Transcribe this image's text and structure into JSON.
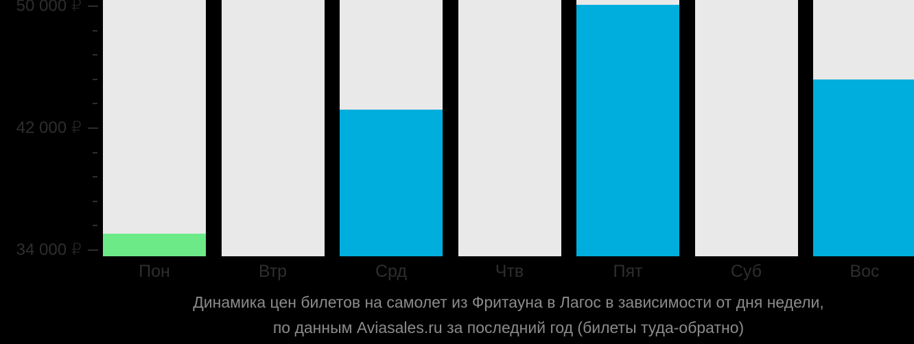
{
  "caption": {
    "line1": "Динамика цен билетов на самолет из Фритауна в Лагос в зависимости от дня недели,",
    "line2": "по данным Aviasales.ru за последний год (билеты туда-обратно)"
  },
  "chart_data": {
    "type": "bar",
    "title": "Динамика цен билетов на самолет из Фритауна в Лагос в зависимости от дня недели, по данным Aviasales.ru за последний год (билеты туда-обратно)",
    "categories": [
      "Пон",
      "Втр",
      "Срд",
      "Чтв",
      "Пят",
      "Суб",
      "Вос"
    ],
    "values": [
      35100,
      null,
      43200,
      null,
      50100,
      null,
      45200
    ],
    "unit": "₽",
    "ylim": [
      33600,
      50400
    ],
    "grid": false,
    "legend": false,
    "y_ticks": [
      {
        "value": 50000,
        "label": "50 000 ₽",
        "major": true
      },
      {
        "value": 48400,
        "label": "",
        "major": false
      },
      {
        "value": 46800,
        "label": "",
        "major": false
      },
      {
        "value": 45200,
        "label": "",
        "major": false
      },
      {
        "value": 43600,
        "label": "",
        "major": false
      },
      {
        "value": 42000,
        "label": "42 000 ₽",
        "major": true
      },
      {
        "value": 40400,
        "label": "",
        "major": false
      },
      {
        "value": 38800,
        "label": "",
        "major": false
      },
      {
        "value": 37200,
        "label": "",
        "major": false
      },
      {
        "value": 35600,
        "label": "",
        "major": false
      },
      {
        "value": 34000,
        "label": "34 000 ₽",
        "major": true
      }
    ],
    "bar_color_roles": [
      "lowest",
      null,
      "regular",
      null,
      "regular",
      null,
      "regular"
    ],
    "colors": {
      "lowest": "#6cea88",
      "regular": "#00aedd",
      "track": "#e9e9e9",
      "background": "#000000",
      "axis_text": "#2e2e2e",
      "caption_text": "#8b8b8b"
    }
  }
}
